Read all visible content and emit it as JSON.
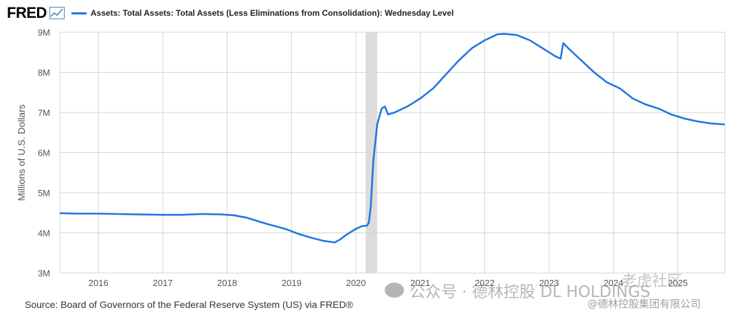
{
  "header": {
    "logo_text": "FRED",
    "legend_label": "Assets: Total Assets: Total Assets (Less Eliminations from Consolidation): Wednesday Level",
    "series_color": "#1f77e0"
  },
  "chart_data": {
    "type": "line",
    "title": "",
    "ylabel": "Millions of U.S. Dollars",
    "xlabel": "",
    "ylim": [
      3000000,
      9000000
    ],
    "xlim": [
      2015.4,
      2025.73
    ],
    "ytick_labels": [
      "3M",
      "4M",
      "5M",
      "6M",
      "7M",
      "8M",
      "9M"
    ],
    "ytick_values": [
      3000000,
      4000000,
      5000000,
      6000000,
      7000000,
      8000000,
      9000000
    ],
    "xtick_labels": [
      "2016",
      "2017",
      "2018",
      "2019",
      "2020",
      "2021",
      "2022",
      "2023",
      "2024",
      "2025"
    ],
    "xtick_values": [
      2016,
      2017,
      2018,
      2019,
      2020,
      2021,
      2022,
      2023,
      2024,
      2025
    ],
    "grid": true,
    "recession_band": [
      2020.15,
      2020.33
    ],
    "series": [
      {
        "name": "Assets: Total Assets: Total Assets (Less Eliminations from Consolidation): Wednesday Level",
        "color": "#1f77e0",
        "x": [
          2015.4,
          2015.7,
          2016.0,
          2016.3,
          2016.6,
          2017.0,
          2017.3,
          2017.6,
          2017.9,
          2018.1,
          2018.3,
          2018.6,
          2018.9,
          2019.1,
          2019.3,
          2019.5,
          2019.67,
          2019.75,
          2019.85,
          2020.0,
          2020.1,
          2020.17,
          2020.2,
          2020.23,
          2020.27,
          2020.33,
          2020.4,
          2020.45,
          2020.5,
          2020.6,
          2020.8,
          2021.0,
          2021.2,
          2021.4,
          2021.6,
          2021.8,
          2022.0,
          2022.2,
          2022.3,
          2022.5,
          2022.7,
          2022.9,
          2023.0,
          2023.1,
          2023.18,
          2023.22,
          2023.3,
          2023.5,
          2023.7,
          2023.9,
          2024.1,
          2024.3,
          2024.5,
          2024.7,
          2024.9,
          2025.1,
          2025.3,
          2025.5,
          2025.73
        ],
        "y": [
          4490000,
          4480000,
          4480000,
          4470000,
          4460000,
          4450000,
          4450000,
          4470000,
          4460000,
          4440000,
          4380000,
          4230000,
          4100000,
          3980000,
          3880000,
          3800000,
          3760000,
          3830000,
          3950000,
          4100000,
          4170000,
          4180000,
          4250000,
          4650000,
          5800000,
          6700000,
          7100000,
          7150000,
          6950000,
          7000000,
          7150000,
          7350000,
          7600000,
          7950000,
          8300000,
          8600000,
          8800000,
          8950000,
          8960000,
          8930000,
          8800000,
          8600000,
          8500000,
          8400000,
          8340000,
          8730000,
          8600000,
          8300000,
          8000000,
          7750000,
          7600000,
          7350000,
          7200000,
          7100000,
          6950000,
          6850000,
          6780000,
          6730000,
          6700000
        ]
      }
    ]
  },
  "footer": {
    "source": "Source: Board of Governors of the Federal Reserve System (US) via FRED®"
  },
  "watermarks": {
    "main": "公众号 · 德林控股 DL HOLDINGS",
    "brand": "老虎社区",
    "copy": "@德林控股集团有限公司"
  }
}
